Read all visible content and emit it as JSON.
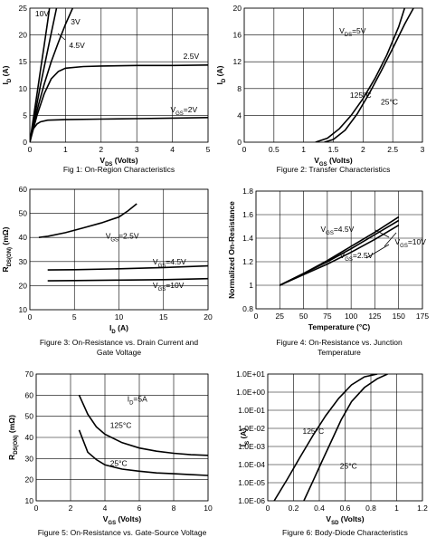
{
  "chart_data": [
    {
      "id": "fig1",
      "type": "line",
      "caption": "Fig 1: On-Region Characteristics",
      "xlabel": "V_DS (Volts)",
      "ylabel": "I_D (A)",
      "xlim": [
        0,
        5
      ],
      "ylim": [
        0,
        25
      ],
      "xticks": [
        0,
        1,
        2,
        3,
        4,
        5
      ],
      "yticks": [
        0,
        5,
        10,
        15,
        20,
        25
      ],
      "grid": true,
      "series": [
        {
          "name": "10V",
          "x": [
            0,
            0.1,
            0.2,
            0.3,
            0.4,
            0.5,
            0.55
          ],
          "y": [
            0,
            4.5,
            9,
            13.5,
            18,
            22.5,
            25
          ]
        },
        {
          "name": "4.5V",
          "x": [
            0,
            0.1,
            0.2,
            0.3,
            0.45,
            0.6,
            0.75
          ],
          "y": [
            0,
            3.6,
            7.2,
            10.7,
            15.5,
            20.3,
            25
          ]
        },
        {
          "name": "3V",
          "x": [
            0,
            0.1,
            0.25,
            0.4,
            0.6,
            0.8,
            1.0,
            1.2
          ],
          "y": [
            0,
            3.2,
            7.2,
            10.8,
            15,
            18.6,
            22,
            25
          ]
        },
        {
          "name": "2.5V",
          "x": [
            0,
            0.1,
            0.2,
            0.4,
            0.6,
            0.8,
            1.0,
            1.5,
            2,
            3,
            4,
            5
          ],
          "y": [
            0,
            2.5,
            5,
            9,
            11.8,
            13.2,
            13.8,
            14.1,
            14.2,
            14.3,
            14.3,
            14.4
          ]
        },
        {
          "name": "VGS=2V",
          "x": [
            0,
            0.05,
            0.1,
            0.2,
            0.3,
            0.5,
            1,
            2,
            3,
            4,
            5
          ],
          "y": [
            0,
            1.5,
            2.5,
            3.4,
            3.8,
            4.1,
            4.2,
            4.3,
            4.4,
            4.5,
            4.6
          ]
        }
      ],
      "labels": [
        "10V",
        "3V",
        "4.5V",
        "2.5V",
        "VGS=2V"
      ]
    },
    {
      "id": "fig2",
      "type": "line",
      "caption": "Figure 2: Transfer Characteristics",
      "xlabel": "V_GS (Volts)",
      "ylabel": "I_D (A)",
      "xlim": [
        0,
        3
      ],
      "ylim": [
        0,
        20
      ],
      "xticks": [
        0,
        0.5,
        1,
        1.5,
        2,
        2.5,
        3
      ],
      "yticks": [
        0,
        4,
        8,
        12,
        16,
        20
      ],
      "grid": true,
      "series": [
        {
          "name": "125°C",
          "x": [
            1.2,
            1.4,
            1.6,
            1.8,
            2.0,
            2.2,
            2.4,
            2.6,
            2.7
          ],
          "y": [
            0,
            0.6,
            2,
            4,
            6.5,
            9.5,
            13,
            17.2,
            20
          ]
        },
        {
          "name": "25°C",
          "x": [
            1.35,
            1.5,
            1.7,
            1.9,
            2.1,
            2.3,
            2.5,
            2.7,
            2.85
          ],
          "y": [
            0,
            0.4,
            1.8,
            4.2,
            7.2,
            10.5,
            14,
            17.6,
            20
          ]
        }
      ],
      "labels": [
        "VDS=5V",
        "125°C",
        "25°C"
      ]
    },
    {
      "id": "fig3",
      "type": "line",
      "caption": "Figure 3: On-Resistance vs. Drain Current and Gate Voltage",
      "caption_lines": [
        "Figure 3: On-Resistance vs. Drain Current and",
        "Gate Voltage"
      ],
      "xlabel": "I_D (A)",
      "ylabel": "R_DS(ON) (mΩ)",
      "xlim": [
        0,
        20
      ],
      "ylim": [
        10,
        60
      ],
      "xticks": [
        0,
        5,
        10,
        15,
        20
      ],
      "yticks": [
        10,
        20,
        30,
        40,
        50,
        60
      ],
      "grid": true,
      "series": [
        {
          "name": "VGS=2.5V",
          "x": [
            1,
            2,
            4,
            6,
            8,
            10,
            11,
            12
          ],
          "y": [
            40,
            40.5,
            42,
            44,
            46,
            48.5,
            51,
            54
          ]
        },
        {
          "name": "VGS=4.5V",
          "x": [
            2,
            5,
            10,
            15,
            20
          ],
          "y": [
            26.5,
            26.6,
            27,
            27.5,
            28.2
          ]
        },
        {
          "name": "VGS=10V",
          "x": [
            2,
            5,
            10,
            15,
            20
          ],
          "y": [
            22,
            22.1,
            22.3,
            22.5,
            22.9
          ]
        }
      ],
      "labels": [
        "VGS=2.5V",
        "VGS=4.5V",
        "VGS=10V"
      ]
    },
    {
      "id": "fig4",
      "type": "line",
      "caption": "Figure 4: On-Resistance vs. Junction Temperature",
      "caption_lines": [
        "Figure 4: On-Resistance vs. Junction",
        "Temperature"
      ],
      "xlabel": "Temperature (°C)",
      "ylabel": "Normalized On-Resistance",
      "xlim": [
        0,
        175
      ],
      "ylim": [
        0.8,
        1.8
      ],
      "xticks": [
        0,
        25,
        50,
        75,
        100,
        125,
        150,
        175
      ],
      "yticks": [
        0.8,
        1,
        1.2,
        1.4,
        1.6,
        1.8
      ],
      "grid": true,
      "series": [
        {
          "name": "VGS=4.5V",
          "x": [
            25,
            50,
            75,
            100,
            125,
            150
          ],
          "y": [
            1.0,
            1.1,
            1.21,
            1.33,
            1.45,
            1.58
          ]
        },
        {
          "name": "VGS=10V",
          "x": [
            25,
            50,
            75,
            100,
            125,
            150
          ],
          "y": [
            1.0,
            1.1,
            1.2,
            1.31,
            1.43,
            1.55
          ]
        },
        {
          "name": "VGS=2.5V",
          "x": [
            25,
            50,
            75,
            100,
            125,
            150
          ],
          "y": [
            1.0,
            1.09,
            1.18,
            1.28,
            1.39,
            1.51
          ]
        }
      ],
      "labels": [
        "VGS=4.5V",
        "VGS=10V",
        "VGS=2.5V"
      ]
    },
    {
      "id": "fig5",
      "type": "line",
      "caption": "Figure 5: On-Resistance vs. Gate-Source Voltage",
      "xlabel": "V_GS (Volts)",
      "ylabel": "R_DS(ON) (mΩ)",
      "xlim": [
        0,
        10
      ],
      "ylim": [
        10,
        70
      ],
      "xticks": [
        0,
        2,
        4,
        6,
        8,
        10
      ],
      "yticks": [
        10,
        20,
        30,
        40,
        50,
        60,
        70
      ],
      "grid": true,
      "series": [
        {
          "name": "125°C",
          "x": [
            2.5,
            3,
            3.5,
            4,
            5,
            6,
            7,
            8,
            9,
            10
          ],
          "y": [
            60,
            51,
            45,
            41.5,
            37.5,
            35,
            33.5,
            32.5,
            31.8,
            31.5
          ]
        },
        {
          "name": "25°C",
          "x": [
            2.5,
            3,
            3.5,
            4,
            5,
            6,
            7,
            8,
            9,
            10
          ],
          "y": [
            43.5,
            33,
            29.5,
            27,
            25,
            24,
            23.2,
            22.8,
            22.4,
            22
          ]
        }
      ],
      "labels": [
        "ID=5A",
        "125°C",
        "25°C"
      ]
    },
    {
      "id": "fig6",
      "type": "line",
      "caption": "Figure 6: Body-Diode Characteristics",
      "xlabel": "V_SD (Volts)",
      "ylabel": "I_S (A)",
      "xlim": [
        0,
        1.2
      ],
      "ylim": [
        1e-06,
        10
      ],
      "yscale": "log",
      "xticks": [
        0,
        0.2,
        0.4,
        0.6,
        0.8,
        1,
        1.2
      ],
      "yticks": [
        "1.0E-06",
        "1.0E-05",
        "1.0E-04",
        "1.0E-03",
        "1.0E-02",
        "1.0E-01",
        "1.0E+00",
        "1.0E+01"
      ],
      "grid": true,
      "series": [
        {
          "name": "125°C",
          "x": [
            0.05,
            0.15,
            0.25,
            0.35,
            0.45,
            0.55,
            0.65,
            0.75,
            0.85
          ],
          "y": [
            1e-06,
            1.5e-05,
            0.00025,
            0.004,
            0.05,
            0.45,
            2.5,
            7,
            10
          ]
        },
        {
          "name": "25°C",
          "x": [
            0.28,
            0.35,
            0.42,
            0.5,
            0.57,
            0.65,
            0.75,
            0.85,
            0.93
          ],
          "y": [
            1e-06,
            1.2e-05,
            0.00015,
            0.0025,
            0.03,
            0.3,
            1.8,
            5.5,
            10
          ]
        }
      ],
      "labels": [
        "125°C",
        "25°C"
      ]
    }
  ]
}
